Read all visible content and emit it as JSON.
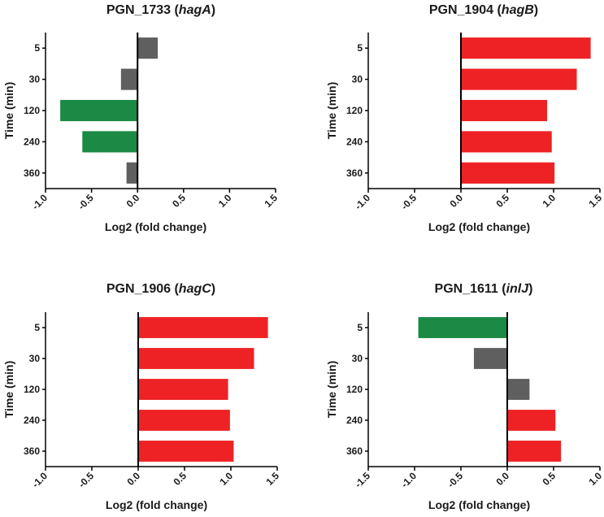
{
  "colors": {
    "down": "#1a8a45",
    "neutral": "#5f5f5f",
    "up": "#ee2224",
    "axis": "#000000"
  },
  "chart_data": [
    {
      "type": "bar",
      "orientation": "horizontal",
      "title_prefix": "PGN_1733 (",
      "title_gene": "hagA",
      "title_suffix": ")",
      "xlabel": "Log2 (fold change)",
      "ylabel": "Time (min)",
      "categories": [
        "5",
        "30",
        "120",
        "240",
        "360"
      ],
      "values": [
        0.22,
        -0.18,
        -0.84,
        -0.6,
        -0.12
      ],
      "bar_colors": [
        "neutral",
        "neutral",
        "down",
        "down",
        "neutral"
      ],
      "xlim": [
        -1.0,
        1.5
      ],
      "xticks": [
        -1.0,
        -0.5,
        0.0,
        0.5,
        1.0,
        1.5
      ],
      "xtick_labels": [
        "-1.0",
        "-0.5",
        "0.0",
        "0.5",
        "1.0",
        "1.5"
      ]
    },
    {
      "type": "bar",
      "orientation": "horizontal",
      "title_prefix": "PGN_1904 (",
      "title_gene": "hagB",
      "title_suffix": ")",
      "xlabel": "Log2 (fold change)",
      "ylabel": "Time (min)",
      "categories": [
        "5",
        "30",
        "120",
        "240",
        "360"
      ],
      "values": [
        1.4,
        1.25,
        0.93,
        0.98,
        1.01
      ],
      "bar_colors": [
        "up",
        "up",
        "up",
        "up",
        "up"
      ],
      "xlim": [
        -1.0,
        1.5
      ],
      "xticks": [
        -1.0,
        -0.5,
        0.0,
        0.5,
        1.0,
        1.5
      ],
      "xtick_labels": [
        "-1.0",
        "-0.5",
        "0.0",
        "0.5",
        "1.0",
        "1.5"
      ]
    },
    {
      "type": "bar",
      "orientation": "horizontal",
      "title_prefix": "PGN_1906 (",
      "title_gene": "hagC",
      "title_suffix": ")",
      "xlabel": "Log2 (fold change)",
      "ylabel": "Time (min)",
      "categories": [
        "5",
        "30",
        "120",
        "240",
        "360"
      ],
      "values": [
        1.4,
        1.25,
        0.97,
        0.99,
        1.03
      ],
      "bar_colors": [
        "up",
        "up",
        "up",
        "up",
        "up"
      ],
      "xlim": [
        -1.0,
        1.5
      ],
      "xticks": [
        -1.0,
        -0.5,
        0.0,
        0.5,
        1.0,
        1.5
      ],
      "xtick_labels": [
        "-1.0",
        "-0.5",
        "0.0",
        "0.5",
        "1.0",
        "1.5"
      ]
    },
    {
      "type": "bar",
      "orientation": "horizontal",
      "title_prefix": "PGN_1611 (",
      "title_gene": "inlJ",
      "title_suffix": ")",
      "xlabel": "Log2 (fold change)",
      "ylabel": "Time (min)",
      "categories": [
        "5",
        "30",
        "120",
        "240",
        "360"
      ],
      "values": [
        -0.96,
        -0.36,
        0.24,
        0.52,
        0.58
      ],
      "bar_colors": [
        "down",
        "neutral",
        "neutral",
        "up",
        "up"
      ],
      "xlim": [
        -1.5,
        1.0
      ],
      "xticks": [
        -1.5,
        -1.0,
        -0.5,
        0.0,
        0.5,
        1.0
      ],
      "xtick_labels": [
        "-1.5",
        "-1.0",
        "-0.5",
        "0.0",
        "0.5",
        "1.0"
      ]
    }
  ]
}
